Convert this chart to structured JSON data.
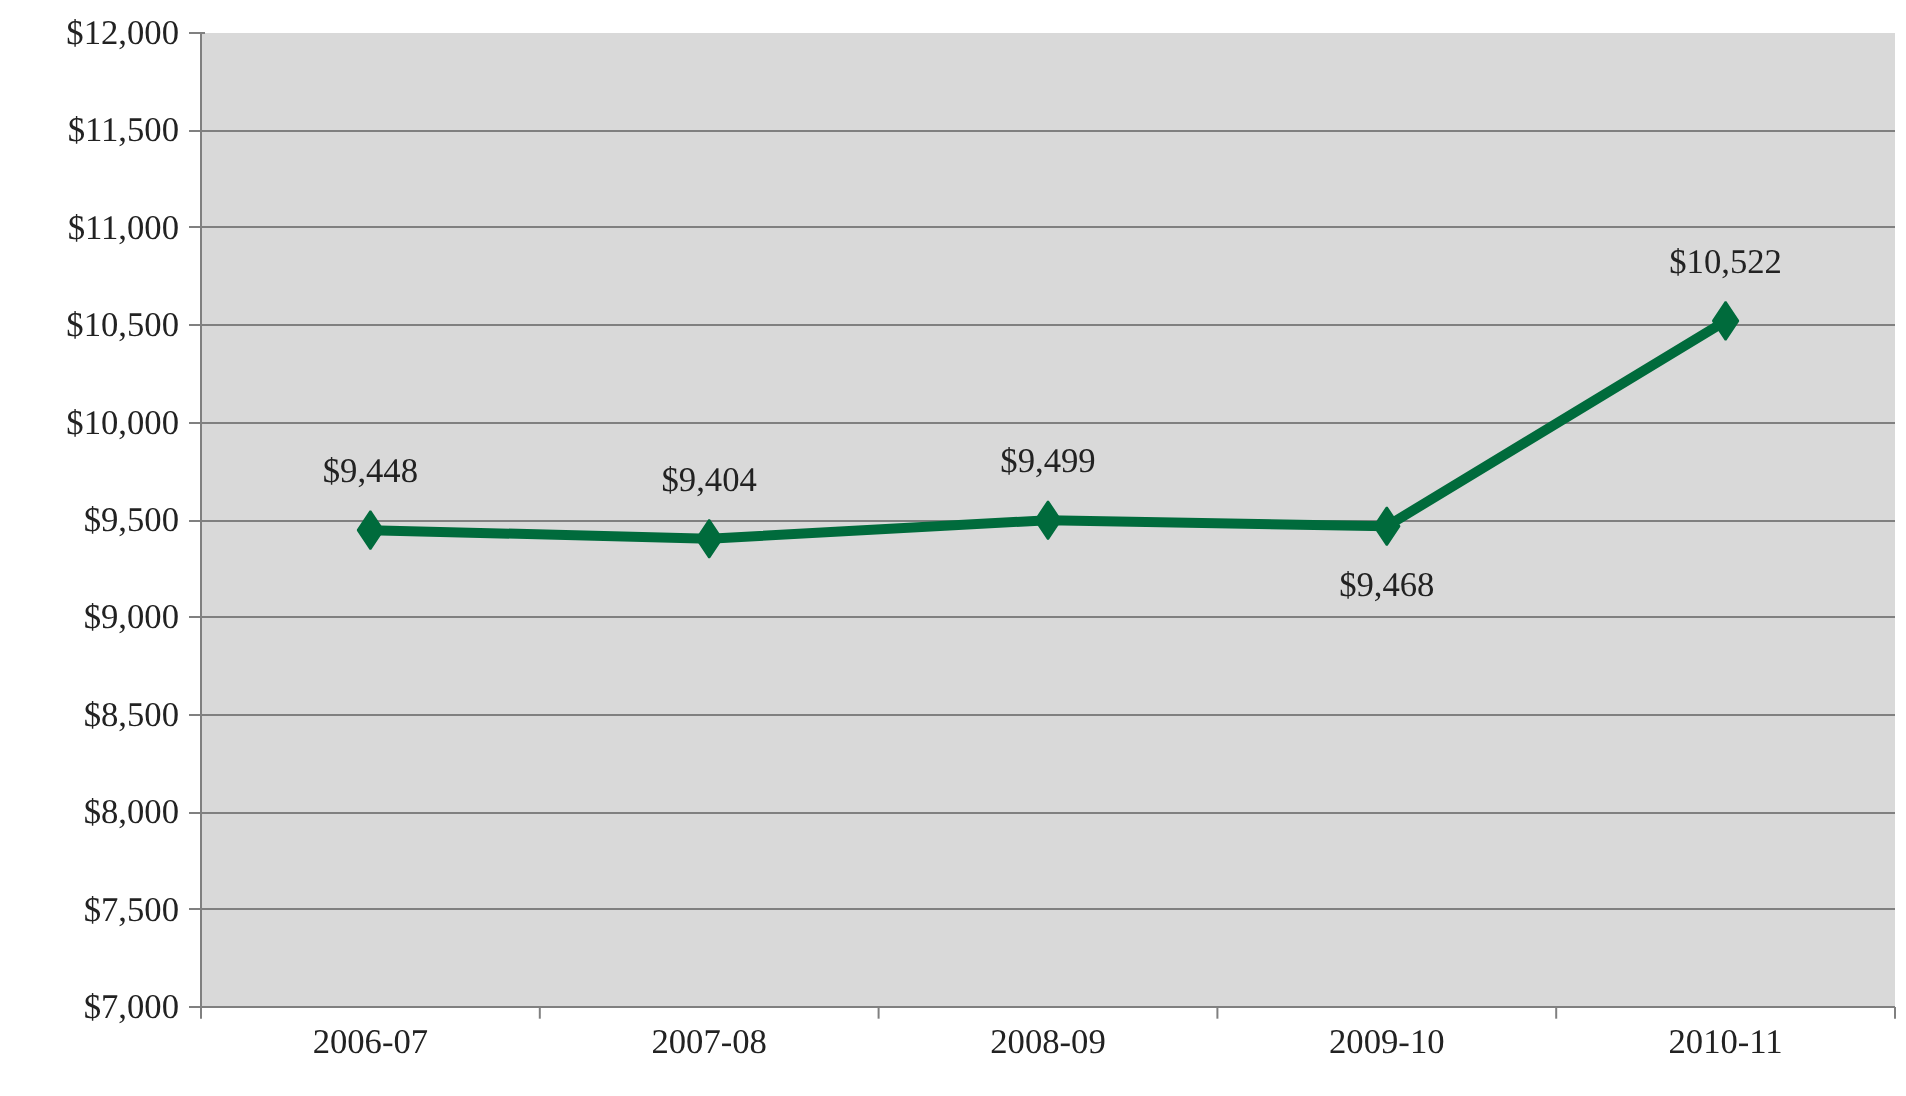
{
  "chart_data": {
    "type": "line",
    "categories": [
      "2006-07",
      "2007-08",
      "2008-09",
      "2009-10",
      "2010-11"
    ],
    "series": [
      {
        "color": "#006b3c",
        "values": [
          9448,
          9404,
          9499,
          9468,
          10522
        ],
        "value_labels": [
          "$9,448",
          "$9,404",
          "$9,499",
          "$9,468",
          "$10,522"
        ]
      }
    ],
    "ylim": [
      7000,
      12000
    ],
    "yticks": [
      {
        "value": 7000,
        "label": "$7,000"
      },
      {
        "value": 7500,
        "label": "$7,500"
      },
      {
        "value": 8000,
        "label": "$8,000"
      },
      {
        "value": 8500,
        "label": "$8,500"
      },
      {
        "value": 9000,
        "label": "$9,000"
      },
      {
        "value": 9500,
        "label": "$9,500"
      },
      {
        "value": 10000,
        "label": "$10,000"
      },
      {
        "value": 10500,
        "label": "$10,500"
      },
      {
        "value": 11000,
        "label": "$11,000"
      },
      {
        "value": 11500,
        "label": "$11,500"
      },
      {
        "value": 12000,
        "label": "$12,000"
      }
    ],
    "grid": "y",
    "marker": "diamond",
    "line_style": "solid"
  }
}
